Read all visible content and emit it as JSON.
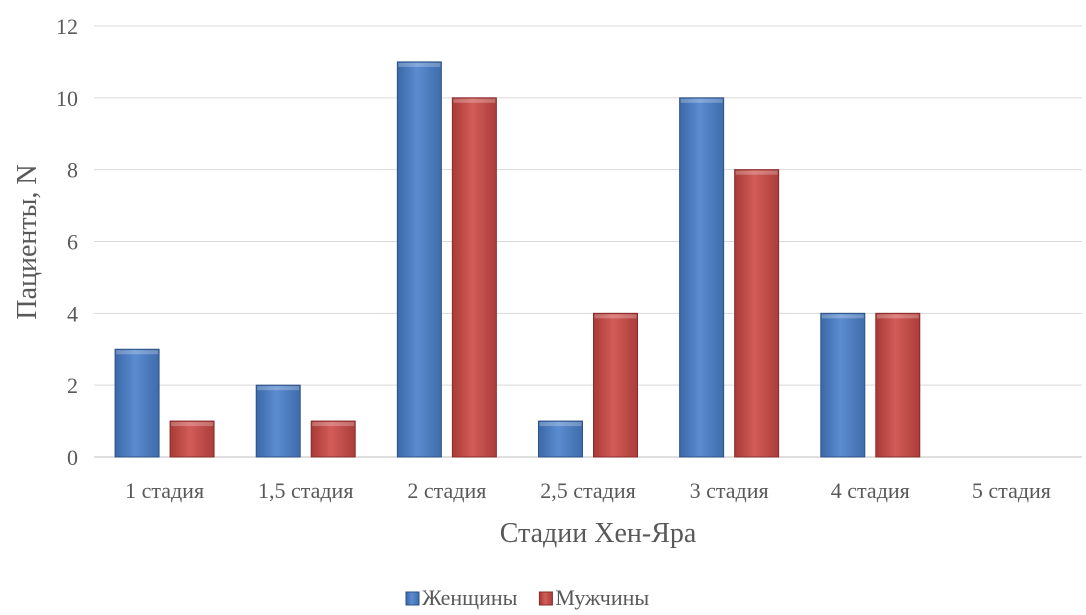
{
  "chart_data": {
    "type": "bar",
    "categories": [
      "1 стадия",
      "1,5 стадия",
      "2 стадия",
      "2,5 стадия",
      "3 стадия",
      "4 стадия",
      "5 стадия"
    ],
    "series": [
      {
        "name": "Женщины",
        "values": [
          3,
          2,
          11,
          1,
          10,
          4,
          0
        ]
      },
      {
        "name": "Мужчины",
        "values": [
          1,
          1,
          10,
          4,
          8,
          4,
          0
        ]
      }
    ],
    "xlabel": "Стадии Хен-Яра",
    "ylabel": "Пациенты, N",
    "ylim": [
      0,
      12
    ],
    "yticks": [
      0,
      2,
      4,
      6,
      8,
      10,
      12
    ],
    "grid": true,
    "legend_position": "bottom",
    "colors": {
      "Женщины": "#4f81bd",
      "Мужчины": "#c0504d",
      "grid": "#d9d9d9",
      "text": "#595959"
    }
  }
}
